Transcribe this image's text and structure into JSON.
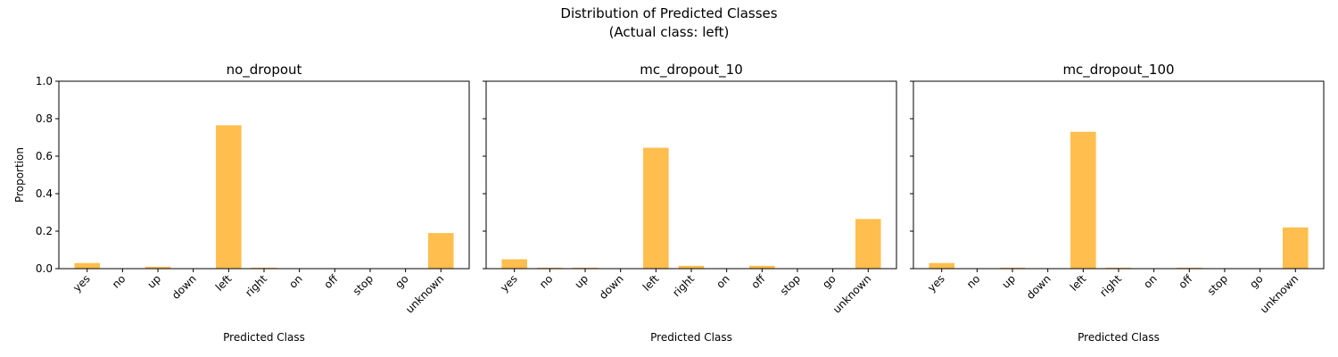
{
  "figure": {
    "title_line1": "Distribution of Predicted Classes",
    "title_line2": "(Actual class: left)"
  },
  "chart_data": [
    {
      "type": "bar",
      "title": "no_dropout",
      "xlabel": "Predicted Class",
      "ylabel": "Proportion",
      "ylim": [
        0,
        1.0
      ],
      "yticks": [
        "0.0",
        "0.2",
        "0.4",
        "0.6",
        "0.8",
        "1.0"
      ],
      "categories": [
        "yes",
        "no",
        "up",
        "down",
        "left",
        "right",
        "on",
        "off",
        "stop",
        "go",
        "unknown"
      ],
      "values": [
        0.03,
        0.0,
        0.01,
        0.0,
        0.765,
        0.005,
        0.0,
        0.0,
        0.0,
        0.0,
        0.19
      ],
      "color": "#ffbe4d",
      "grid": false
    },
    {
      "type": "bar",
      "title": "mc_dropout_10",
      "xlabel": "Predicted Class",
      "ylabel": "",
      "ylim": [
        0,
        1.0
      ],
      "categories": [
        "yes",
        "no",
        "up",
        "down",
        "left",
        "right",
        "on",
        "off",
        "stop",
        "go",
        "unknown"
      ],
      "values": [
        0.05,
        0.005,
        0.005,
        0.0,
        0.645,
        0.015,
        0.0,
        0.015,
        0.0,
        0.0,
        0.265
      ],
      "color": "#ffbe4d",
      "grid": false
    },
    {
      "type": "bar",
      "title": "mc_dropout_100",
      "xlabel": "Predicted Class",
      "ylabel": "",
      "ylim": [
        0,
        1.0
      ],
      "categories": [
        "yes",
        "no",
        "up",
        "down",
        "left",
        "right",
        "on",
        "off",
        "stop",
        "go",
        "unknown"
      ],
      "values": [
        0.03,
        0.0,
        0.005,
        0.0,
        0.73,
        0.005,
        0.0,
        0.005,
        0.0,
        0.0,
        0.22
      ],
      "color": "#ffbe4d",
      "grid": false
    }
  ]
}
